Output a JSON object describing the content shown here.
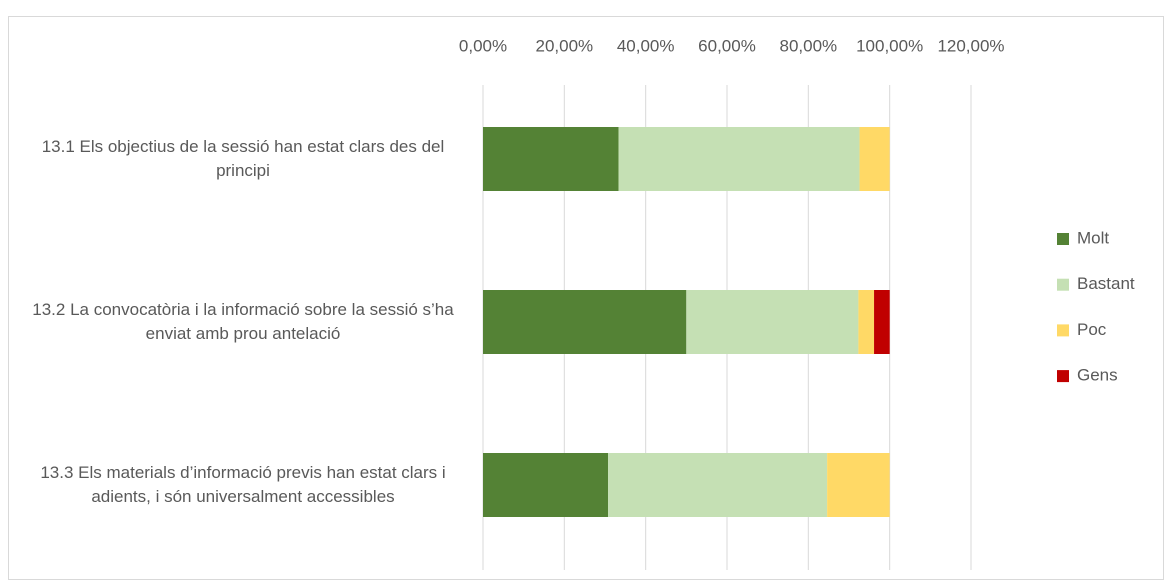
{
  "chart_data": {
    "type": "stacked-barh",
    "categories": [
      "13.1 Els objectius de la sessió han estat clars des del principi",
      "13.2 La convocatòria i la informació sobre la sessió s’ha enviat amb prou antelació",
      "13.3 Els materials d’informació previs han estat clars i adients, i són universalment accessibles"
    ],
    "series": [
      {
        "name": "Molt",
        "color": "#548235",
        "values": [
          33.33,
          50,
          30.77
        ]
      },
      {
        "name": "Bastant",
        "color": "#c5e0b4",
        "values": [
          59.26,
          42.31,
          53.85
        ]
      },
      {
        "name": "Poc",
        "color": "#ffd966",
        "values": [
          7.41,
          3.85,
          15.38
        ]
      },
      {
        "name": "Gens",
        "color": "#c00000",
        "values": [
          null,
          3.85,
          null
        ]
      }
    ],
    "xlim": [
      0,
      120
    ],
    "xticks": [
      {
        "value": 0,
        "label": "0,00%"
      },
      {
        "value": 20,
        "label": "20,00%"
      },
      {
        "value": 40,
        "label": "40,00%"
      },
      {
        "value": 60,
        "label": "60,00%"
      },
      {
        "value": 80,
        "label": "80,00%"
      },
      {
        "value": 100,
        "label": "100,00%"
      },
      {
        "value": 120,
        "label": "120,00%"
      }
    ],
    "grid": true,
    "legend": "right"
  }
}
